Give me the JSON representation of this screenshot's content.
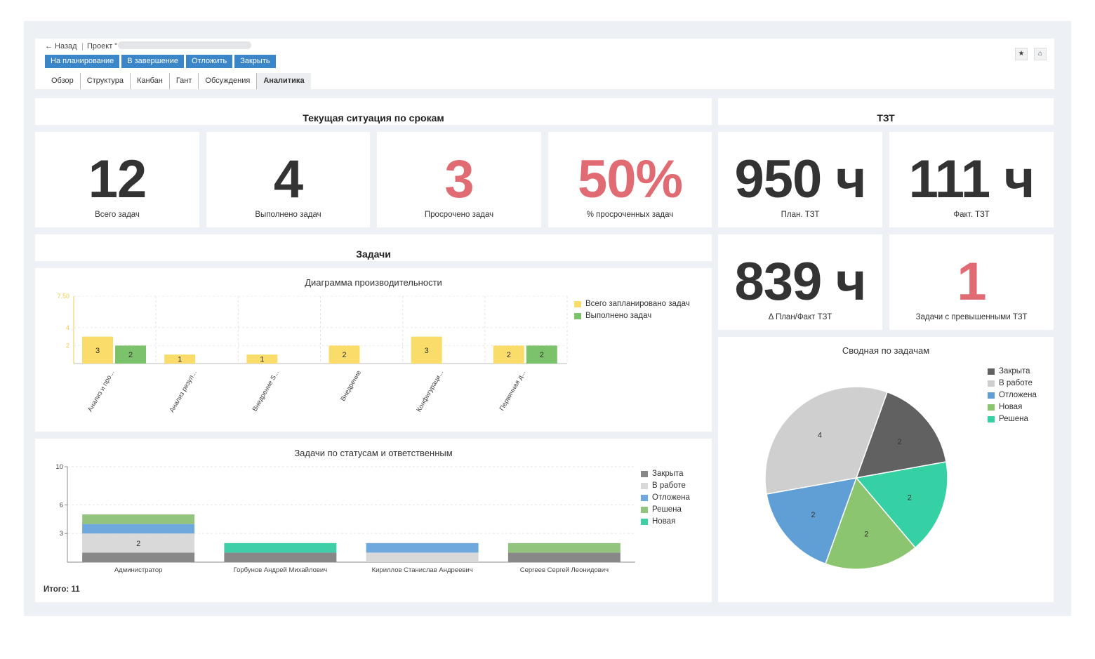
{
  "nav": {
    "back_label": "← Назад",
    "separator": "|",
    "project_label": "Проект \""
  },
  "actions": [
    {
      "label": "На планирование"
    },
    {
      "label": "В завершение"
    },
    {
      "label": "Отложить"
    },
    {
      "label": "Закрыть"
    }
  ],
  "tabs": [
    {
      "label": "Обзор"
    },
    {
      "label": "Структура"
    },
    {
      "label": "Канбан"
    },
    {
      "label": "Гант"
    },
    {
      "label": "Обсуждения"
    },
    {
      "label": "Аналитика"
    }
  ],
  "corner_icons": [
    {
      "glyph": "★",
      "icon": "star-icon"
    },
    {
      "glyph": "⌂",
      "icon": "home-icon"
    }
  ],
  "deadlines": {
    "title": "Текущая ситуация по срокам",
    "kpis": [
      {
        "value": "12",
        "caption": "Всего задач",
        "color": "#333333"
      },
      {
        "value": "4",
        "caption": "Выполнено задач",
        "color": "#333333"
      },
      {
        "value": "3",
        "caption": "Просрочено задач",
        "color": "#e06b73"
      },
      {
        "value": "50%",
        "caption": "% просроченных задач",
        "color": "#e06b73"
      }
    ]
  },
  "tzt": {
    "title": "ТЗТ",
    "kpis": [
      {
        "value": "950 ч",
        "caption": "План. ТЗТ",
        "color": "#333333"
      },
      {
        "value": "111 ч",
        "caption": "Факт. ТЗТ",
        "color": "#333333"
      },
      {
        "value": "839 ч",
        "caption": "Δ План/Факт ТЗТ",
        "color": "#333333"
      },
      {
        "value": "1",
        "caption": "Задачи с превышенными ТЗТ",
        "color": "#e06b73"
      }
    ]
  },
  "tasks": {
    "title": "Задачи",
    "total_label": "Итого: 11"
  },
  "chart_data": [
    {
      "type": "bar",
      "title": "Диаграмма производительности",
      "categories": [
        "Анализ и про...",
        "Анализ резул...",
        "Внедрение S...",
        "Внедрение",
        "Конфигураци...",
        "Первичная д..."
      ],
      "series": [
        {
          "name": "Всего запланировано задач",
          "color": "#f9dc6a",
          "values": [
            3,
            1,
            1,
            2,
            3,
            2
          ]
        },
        {
          "name": "Выполнено задач",
          "color": "#7cc26a",
          "values": [
            2,
            0,
            0,
            0,
            0,
            2
          ]
        }
      ],
      "yticks": [
        "2",
        "4",
        "7.50"
      ],
      "ylim": [
        0,
        7.5
      ],
      "legend": "right",
      "grid": true
    },
    {
      "type": "bar",
      "stacked": true,
      "title": "Задачи по статусам и ответственным",
      "categories": [
        "Администратор",
        "Горбунов Андрей Михайлович",
        "Кириллов Станислав Андреевич",
        "Сергеев Сергей Леонидович"
      ],
      "series": [
        {
          "name": "Закрыта",
          "color": "#888888",
          "values": [
            1,
            1,
            0,
            1
          ]
        },
        {
          "name": "В работе",
          "color": "#d9d9d9",
          "values": [
            2,
            0,
            1,
            0
          ]
        },
        {
          "name": "Отложена",
          "color": "#6fa8dc",
          "values": [
            1,
            0,
            1,
            0
          ]
        },
        {
          "name": "Решена",
          "color": "#93c47d",
          "values": [
            1,
            0,
            0,
            1
          ]
        },
        {
          "name": "Новая",
          "color": "#3ecfa6",
          "values": [
            0,
            1,
            0,
            0
          ]
        }
      ],
      "data_labels": [
        "",
        "2",
        "",
        "",
        ""
      ],
      "yticks": [
        "3",
        "6",
        "10"
      ],
      "ylim": [
        0,
        10
      ],
      "legend": "right",
      "grid": true
    },
    {
      "type": "pie",
      "title": "Сводная по задачам",
      "slices": [
        {
          "name": "Закрыта",
          "value": 2,
          "color": "#616161"
        },
        {
          "name": "Решена",
          "value": 2,
          "color": "#36d0a5"
        },
        {
          "name": "Новая",
          "value": 2,
          "color": "#8cc56f"
        },
        {
          "name": "Отложена",
          "value": 2,
          "color": "#5f9fd6"
        },
        {
          "name": "В работе",
          "value": 4,
          "color": "#cfcfcf"
        }
      ],
      "legend_entries": [
        {
          "name": "Закрыта",
          "color": "#616161"
        },
        {
          "name": "В работе",
          "color": "#cfcfcf"
        },
        {
          "name": "Отложена",
          "color": "#5f9fd6"
        },
        {
          "name": "Новая",
          "color": "#8cc56f"
        },
        {
          "name": "Решена",
          "color": "#36d0a5"
        }
      ],
      "legend": "top-right"
    }
  ]
}
